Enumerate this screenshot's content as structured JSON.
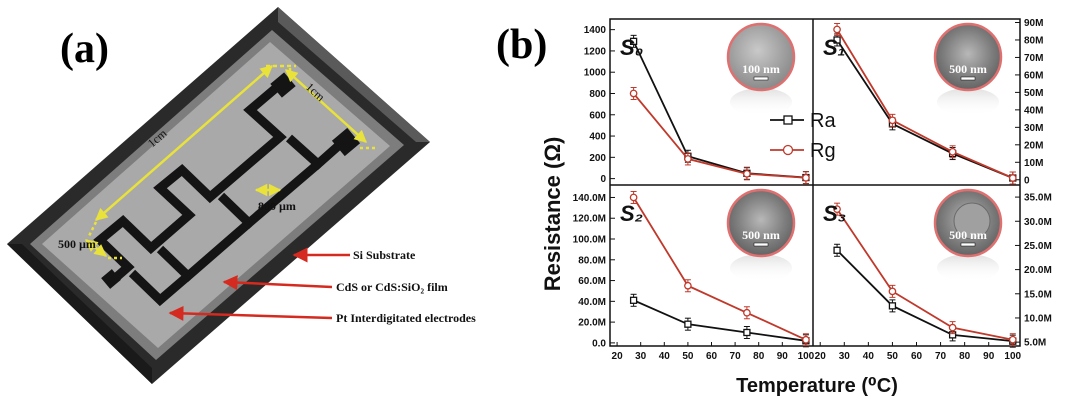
{
  "panel_a": {
    "label": "(a)",
    "dims": {
      "length": "1cm",
      "width": "1cm",
      "gap": "800 µm",
      "finger": "500 µm"
    },
    "callouts": [
      {
        "text": "Si Substrate"
      },
      {
        "text": "CdS or CdS:SiO₂ film"
      },
      {
        "text": "Pt Interdigitated electrodes"
      }
    ]
  },
  "panel_b": {
    "label": "(b)",
    "xlabel": "Temperature (⁰C)",
    "ylabel": "Resistance (Ω)",
    "legend": {
      "ra": "Ra",
      "rg": "Rg"
    },
    "colors": {
      "ra": "#111111",
      "rg": "#c0392b"
    }
  },
  "chart_data": [
    {
      "type": "line",
      "panel": "S0",
      "label": "S₀",
      "x": [
        27,
        50,
        75,
        100
      ],
      "xlim": [
        17,
        103
      ],
      "ylim": [
        -60,
        1500
      ],
      "yticks": [
        0,
        200,
        400,
        600,
        800,
        1000,
        1200,
        1400
      ],
      "ytick_labels": [
        "0",
        "200",
        "400",
        "600",
        "800",
        "1000",
        "1200",
        "1400"
      ],
      "axis_side": "left",
      "series": [
        {
          "name": "Ra",
          "values": [
            1290,
            210,
            50,
            10
          ]
        },
        {
          "name": "Rg",
          "values": [
            800,
            185,
            45,
            8
          ]
        }
      ],
      "inset_scale": "100 nm"
    },
    {
      "type": "line",
      "panel": "S1",
      "label": "S₁",
      "x": [
        27,
        50,
        75,
        100
      ],
      "xlim": [
        17,
        103
      ],
      "ylim": [
        -3,
        92
      ],
      "yticks": [
        0,
        10,
        20,
        30,
        40,
        50,
        60,
        70,
        80,
        90
      ],
      "ytick_labels": [
        "0",
        "10M",
        "20M",
        "30M",
        "40M",
        "50M",
        "60M",
        "70M",
        "80M",
        "90M"
      ],
      "axis_side": "right",
      "series": [
        {
          "name": "Ra",
          "values": [
            80,
            32,
            15,
            1
          ]
        },
        {
          "name": "Rg",
          "values": [
            86,
            34,
            16,
            1
          ]
        }
      ],
      "inset_scale": "500 nm"
    },
    {
      "type": "line",
      "panel": "S2",
      "label": "S₂",
      "x": [
        27,
        50,
        75,
        100
      ],
      "xlim": [
        17,
        103
      ],
      "ylim": [
        -3,
        152
      ],
      "yticks": [
        0,
        20,
        40,
        60,
        80,
        100,
        120,
        140
      ],
      "ytick_labels": [
        "0.0",
        "20.0M",
        "40.0M",
        "60.0M",
        "80.0M",
        "100.0M",
        "120.0M",
        "140.0M"
      ],
      "axis_side": "left",
      "series": [
        {
          "name": "Ra",
          "values": [
            41,
            18,
            10,
            2
          ]
        },
        {
          "name": "Rg",
          "values": [
            140,
            55,
            29,
            3
          ]
        }
      ],
      "inset_scale": "500 nm"
    },
    {
      "type": "line",
      "panel": "S3",
      "label": "S₃",
      "x": [
        27,
        50,
        75,
        100
      ],
      "xlim": [
        17,
        103
      ],
      "ylim": [
        4.2,
        37.5
      ],
      "yticks": [
        5,
        10,
        15,
        20,
        25,
        30,
        35
      ],
      "ytick_labels": [
        "5.0M",
        "10.0M",
        "15.0M",
        "20.0M",
        "25.0M",
        "30.0M",
        "35.0M"
      ],
      "axis_side": "right",
      "series": [
        {
          "name": "Ra",
          "values": [
            24,
            12.5,
            6.5,
            5.2
          ]
        },
        {
          "name": "Rg",
          "values": [
            32.5,
            15.5,
            8,
            5.5
          ]
        }
      ],
      "inset_scale": "500 nm"
    }
  ],
  "x_ticks": [
    20,
    30,
    40,
    50,
    60,
    70,
    80,
    90,
    100
  ]
}
